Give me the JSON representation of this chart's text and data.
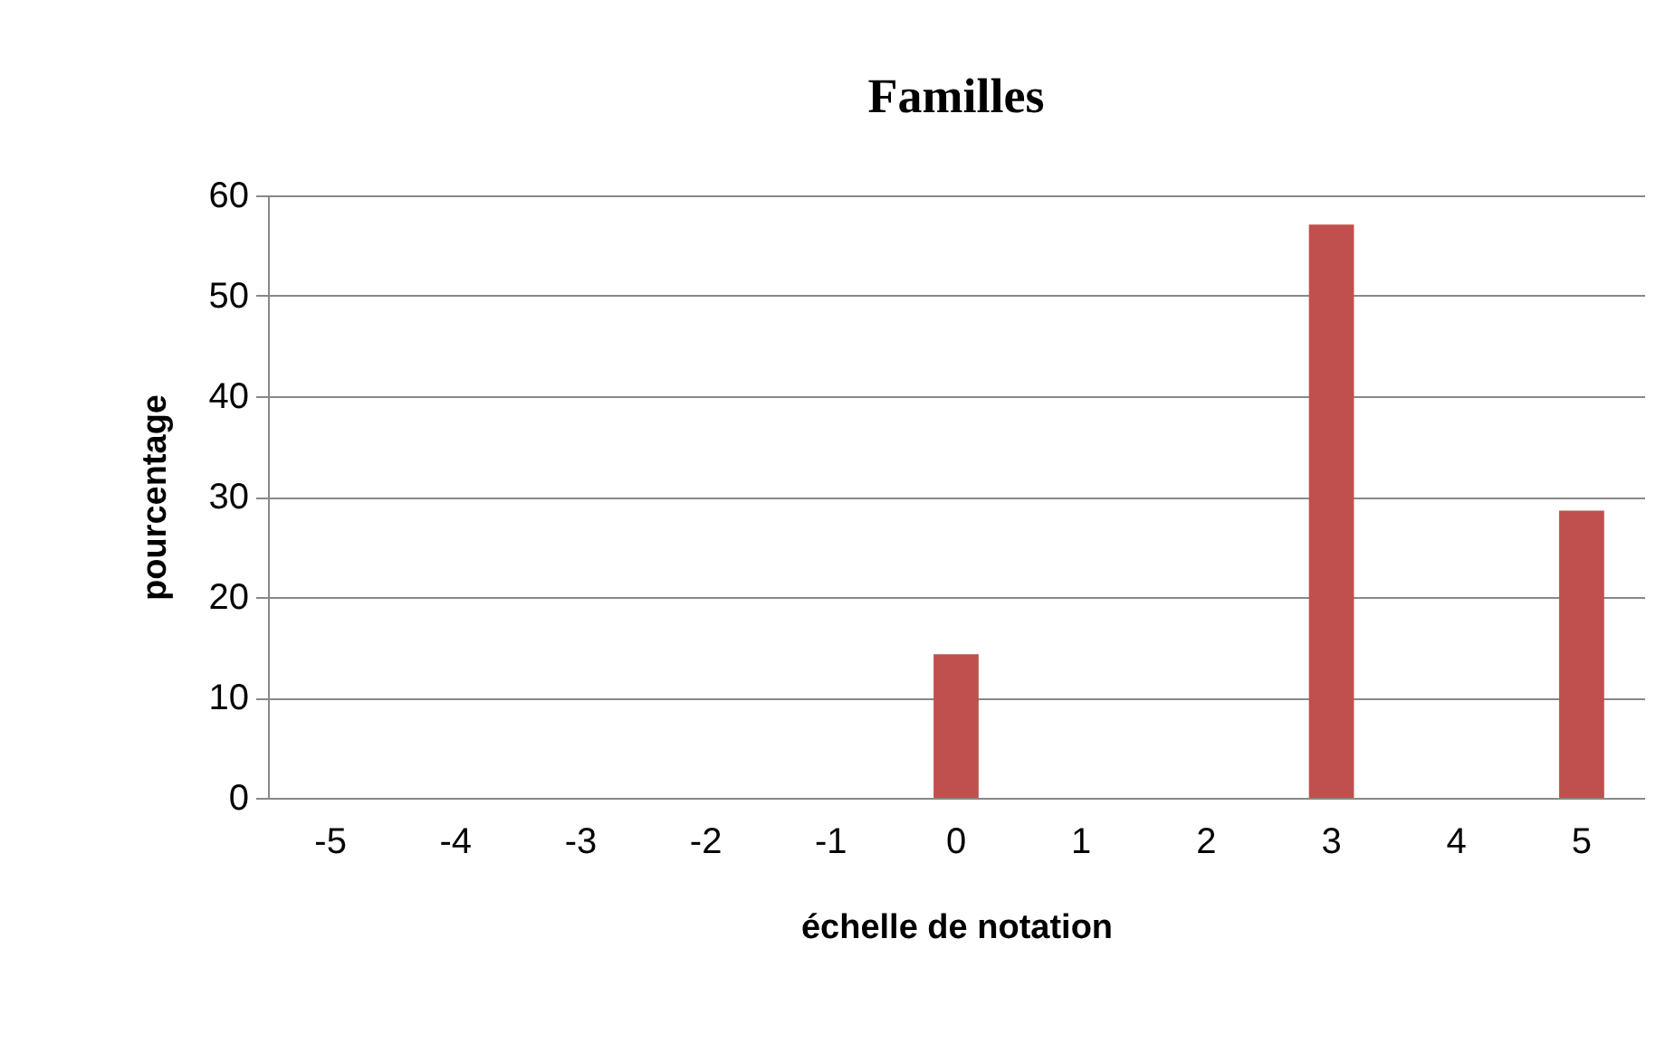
{
  "chart_data": {
    "type": "bar",
    "title": "Familles",
    "xlabel": "échelle de notation",
    "ylabel": "pourcentage",
    "categories": [
      "-5",
      "-4",
      "-3",
      "-2",
      "-1",
      "0",
      "1",
      "2",
      "3",
      "4",
      "5"
    ],
    "values": [
      0,
      0,
      0,
      0,
      0,
      14.3,
      0,
      0,
      57.1,
      0,
      28.6
    ],
    "color": "#c0504d",
    "ylim": [
      0,
      60
    ],
    "yticks": [
      0,
      10,
      20,
      30,
      40,
      50,
      60
    ],
    "grid": "y"
  }
}
